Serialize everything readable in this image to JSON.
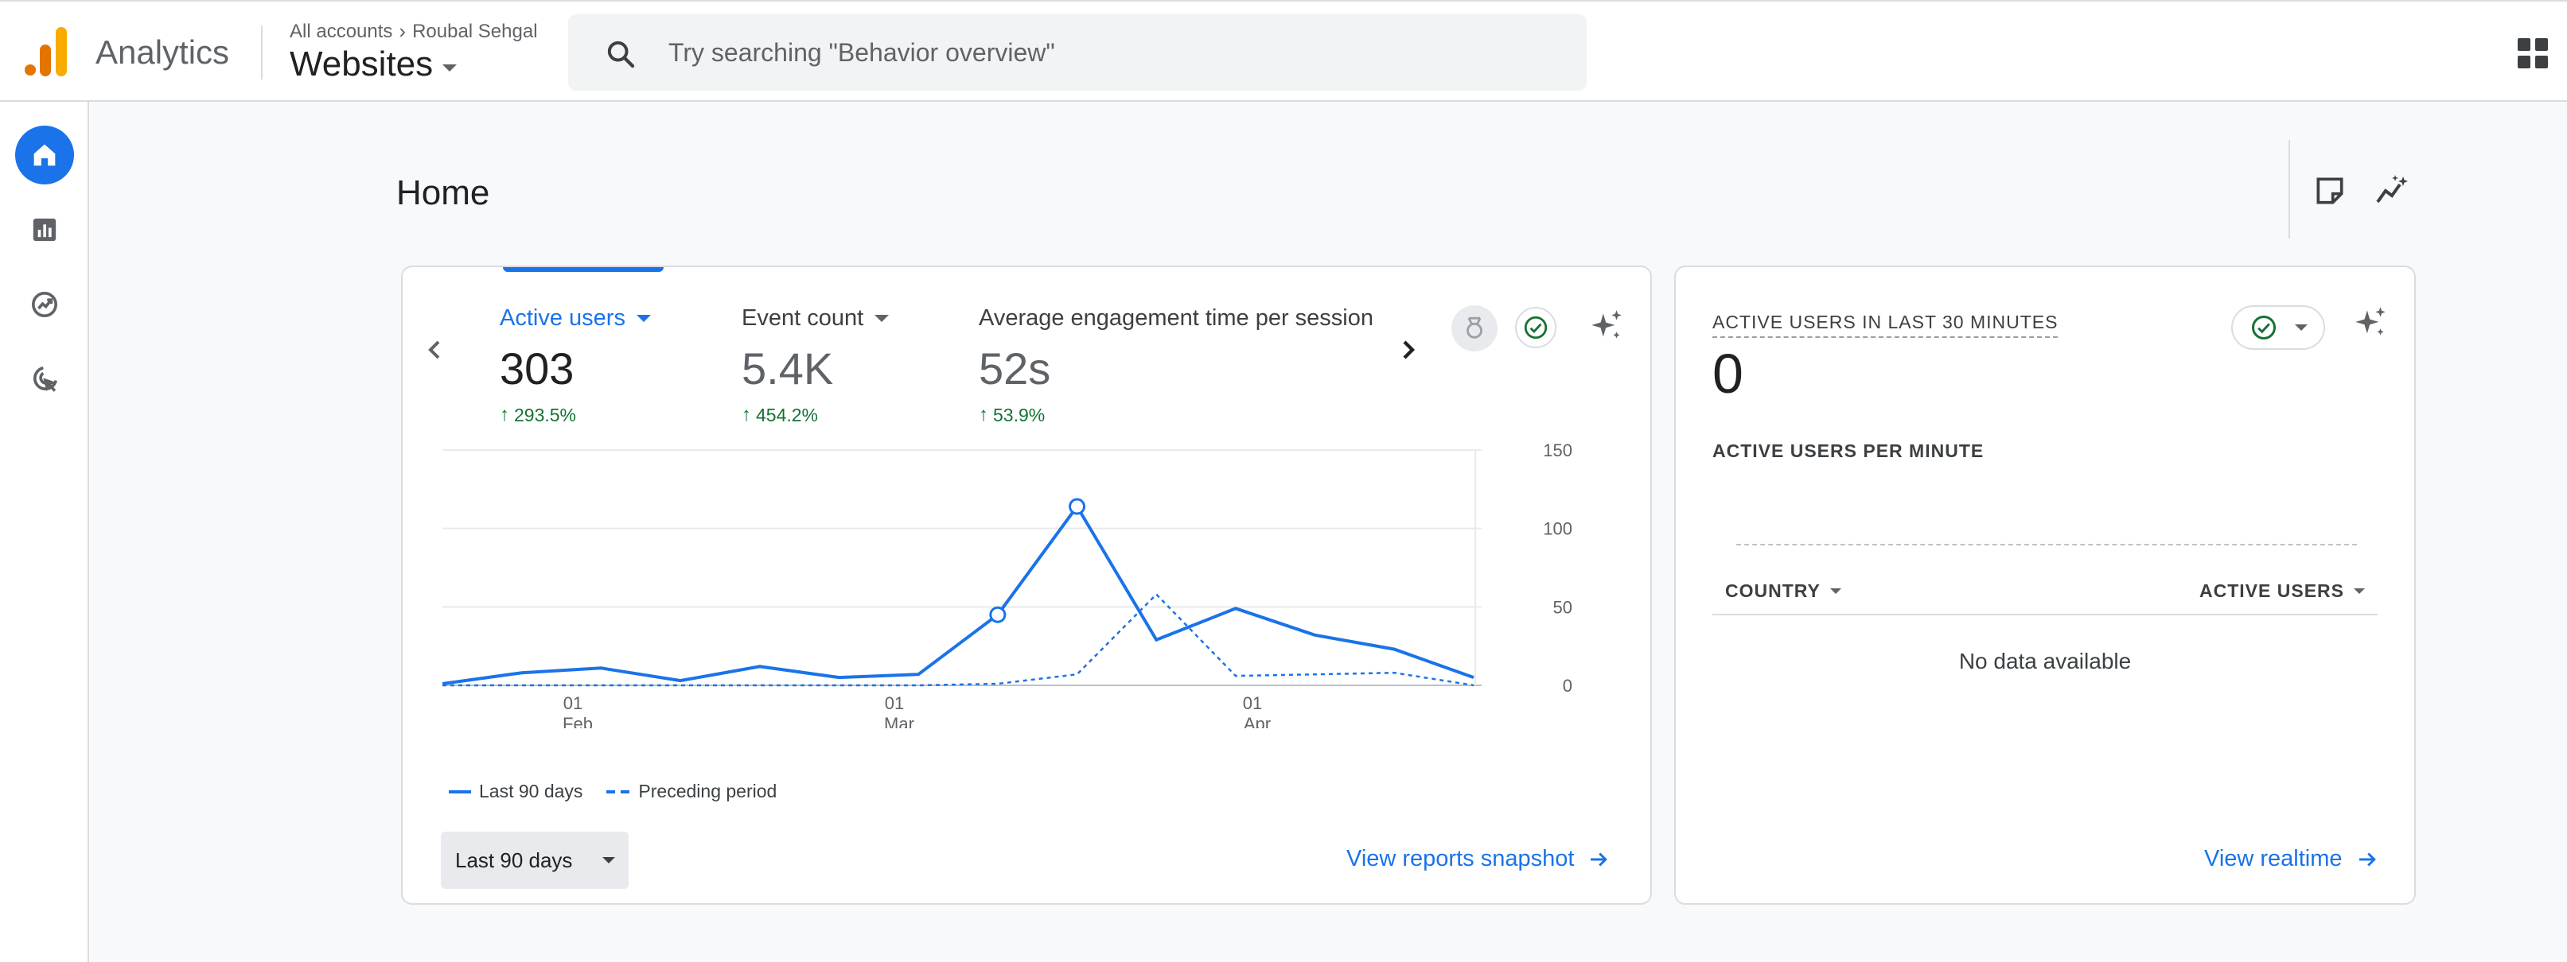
{
  "header": {
    "product_name": "Analytics",
    "breadcrumb": {
      "account": "All accounts",
      "sub_account": "Roubal Sehgal"
    },
    "property_name": "Websites",
    "search": {
      "placeholder": "Try searching \"Behavior overview\"",
      "value": ""
    },
    "colors": {
      "logo_orange": "#f9ab00",
      "logo_dark_orange": "#e37400",
      "accent": "#1a73e8"
    }
  },
  "leftnav": {
    "items": [
      {
        "name": "home",
        "icon": "home-icon",
        "active": true
      },
      {
        "name": "reports",
        "icon": "bar-chart-icon",
        "active": false
      },
      {
        "name": "explore",
        "icon": "explore-trend-icon",
        "active": false
      },
      {
        "name": "advertising",
        "icon": "target-cursor-icon",
        "active": false
      }
    ]
  },
  "page": {
    "title": "Home"
  },
  "main_card": {
    "metrics": [
      {
        "label": "Active users",
        "value": "303",
        "change": "293.5%",
        "active": true
      },
      {
        "label": "Event count",
        "value": "5.4K",
        "change": "454.2%",
        "active": false
      },
      {
        "label": "Average engagement time per session",
        "value": "52s",
        "change": "53.9%",
        "active": false
      }
    ],
    "legend": {
      "current": "Last 90 days",
      "previous": "Preceding period"
    },
    "date_range": "Last 90 days",
    "link": "View reports snapshot"
  },
  "chart_data": {
    "type": "line",
    "x_tick_labels": [
      {
        "day": "01",
        "month": "Feb"
      },
      {
        "day": "01",
        "month": "Mar"
      },
      {
        "day": "01",
        "month": "Apr"
      }
    ],
    "y_tick_labels": [
      "150",
      "100",
      "50",
      "0"
    ],
    "ylim": [
      0,
      150
    ],
    "series": [
      {
        "name": "Last 90 days",
        "style": "solid",
        "values": [
          1,
          8,
          11,
          3,
          12,
          5,
          7,
          45,
          114,
          29,
          49,
          32,
          23,
          5
        ]
      },
      {
        "name": "Preceding period",
        "style": "dashed",
        "values": [
          0,
          0,
          0,
          0,
          0,
          0,
          0,
          1,
          7,
          58,
          6,
          7,
          8,
          0
        ]
      }
    ],
    "highlighted_points": [
      7,
      8
    ],
    "grid": true,
    "legend_position": "bottom-left"
  },
  "realtime_card": {
    "title": "ACTIVE USERS IN LAST 30 MINUTES",
    "value": "0",
    "subtitle": "ACTIVE USERS PER MINUTE",
    "columns": [
      "COUNTRY",
      "ACTIVE USERS"
    ],
    "empty_text": "No data available",
    "link": "View realtime"
  }
}
